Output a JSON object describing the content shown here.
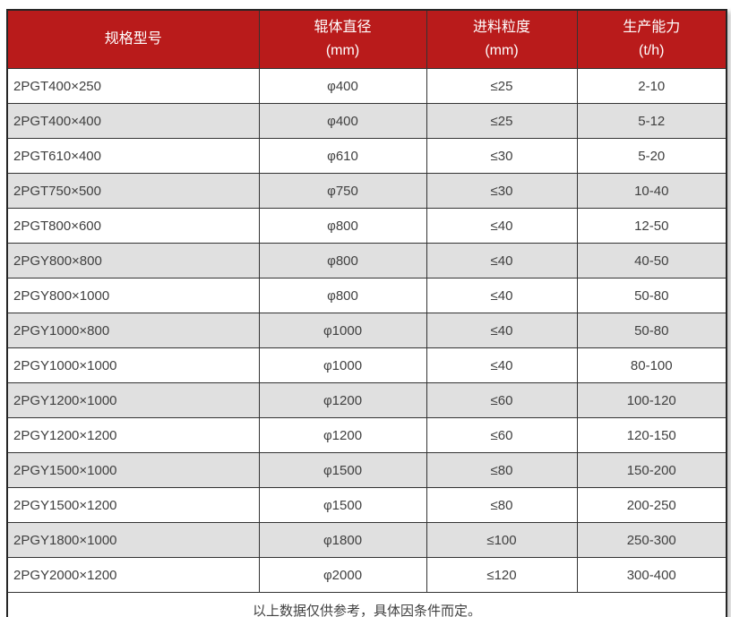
{
  "colors": {
    "header_bg": "#b91b1b",
    "header_text": "#ffffff",
    "row_alt_bg": "#e0e0e0",
    "row_bg": "#ffffff",
    "border": "#333333",
    "body_text": "#404040"
  },
  "table": {
    "columns": [
      {
        "label": "规格型号",
        "unit": ""
      },
      {
        "label": "辊体直径",
        "unit": "(mm)"
      },
      {
        "label": "进料粒度",
        "unit": "(mm)"
      },
      {
        "label": "生产能力",
        "unit": "(t/h)"
      }
    ],
    "rows": [
      {
        "model": "2PGT400×250",
        "diameter": "φ400",
        "feed": "≤25",
        "capacity": "2-10"
      },
      {
        "model": "2PGT400×400",
        "diameter": "φ400",
        "feed": "≤25",
        "capacity": "5-12"
      },
      {
        "model": "2PGT610×400",
        "diameter": "φ610",
        "feed": "≤30",
        "capacity": "5-20"
      },
      {
        "model": "2PGT750×500",
        "diameter": "φ750",
        "feed": "≤30",
        "capacity": "10-40"
      },
      {
        "model": "2PGT800×600",
        "diameter": "φ800",
        "feed": "≤40",
        "capacity": "12-50"
      },
      {
        "model": "2PGY800×800",
        "diameter": "φ800",
        "feed": "≤40",
        "capacity": "40-50"
      },
      {
        "model": "2PGY800×1000",
        "diameter": "φ800",
        "feed": "≤40",
        "capacity": "50-80"
      },
      {
        "model": "2PGY1000×800",
        "diameter": "φ1000",
        "feed": "≤40",
        "capacity": "50-80"
      },
      {
        "model": "2PGY1000×1000",
        "diameter": "φ1000",
        "feed": "≤40",
        "capacity": "80-100"
      },
      {
        "model": "2PGY1200×1000",
        "diameter": "φ1200",
        "feed": "≤60",
        "capacity": "100-120"
      },
      {
        "model": "2PGY1200×1200",
        "diameter": "φ1200",
        "feed": "≤60",
        "capacity": "120-150"
      },
      {
        "model": "2PGY1500×1000",
        "diameter": "φ1500",
        "feed": "≤80",
        "capacity": "150-200"
      },
      {
        "model": "2PGY1500×1200",
        "diameter": "φ1500",
        "feed": "≤80",
        "capacity": "200-250"
      },
      {
        "model": "2PGY1800×1000",
        "diameter": "φ1800",
        "feed": "≤100",
        "capacity": "250-300"
      },
      {
        "model": "2PGY2000×1200",
        "diameter": "φ2000",
        "feed": "≤120",
        "capacity": "300-400"
      }
    ],
    "footer_note": "以上数据仅供参考，具体因条件而定。"
  }
}
